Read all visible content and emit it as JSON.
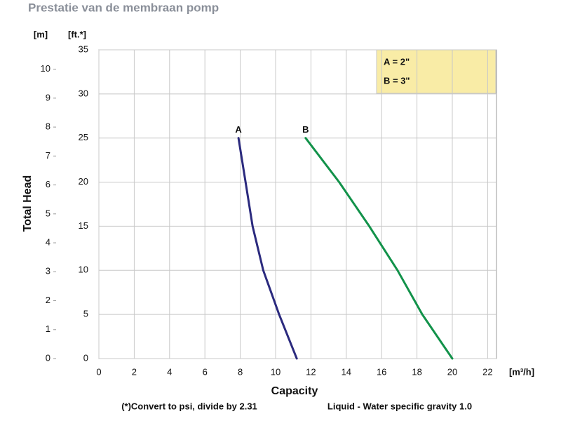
{
  "chart_data": {
    "type": "line",
    "title": "Prestatie van de membraan pomp",
    "x_label": "Capacity",
    "x_unit": "[m³/h]",
    "y_label": "Total Head",
    "y_unit": "[ft.*]",
    "y2_unit": "[m]",
    "footnote": "(*)Convert to psi, divide by 2.31",
    "note": "Liquid - Water specific gravity 1.0",
    "legend_items": [
      "A = 2\"",
      "B = 3\""
    ],
    "xlim": [
      0,
      22.5
    ],
    "xticks": [
      0,
      2,
      4,
      6,
      8,
      10,
      12,
      14,
      16,
      18,
      20,
      22
    ],
    "ylim": [
      0,
      35
    ],
    "yticks": [
      0,
      5,
      10,
      15,
      20,
      25,
      30,
      35
    ],
    "y2lim": [
      0,
      10.67
    ],
    "y2ticks": [
      0,
      1,
      2,
      3,
      4,
      5,
      6,
      7,
      8,
      9,
      10
    ],
    "grid": true,
    "series": [
      {
        "name": "A",
        "color": "#2b2a7e",
        "x": [
          7.9,
          8.3,
          8.7,
          9.3,
          10.2,
          11.2
        ],
        "values": [
          25,
          20,
          15,
          10,
          5,
          0
        ]
      },
      {
        "name": "B",
        "color": "#12924a",
        "x": [
          11.7,
          13.6,
          15.3,
          16.9,
          18.3,
          20.0
        ],
        "values": [
          25,
          20,
          15,
          10,
          5,
          0
        ]
      }
    ]
  }
}
